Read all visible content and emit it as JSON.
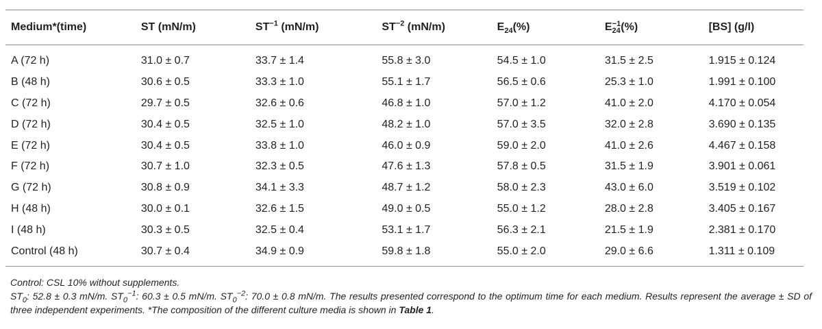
{
  "headers": [
    {
      "base": "Medium*(time)",
      "sup": "",
      "sub": "",
      "suffix": ""
    },
    {
      "base": "ST",
      "sup": "",
      "sub": "",
      "suffix": " (mN/m)"
    },
    {
      "base": "ST",
      "sup": "−1",
      "sub": "",
      "suffix": " (mN/m)"
    },
    {
      "base": "ST",
      "sup": "−2",
      "sub": "",
      "suffix": " (mN/m)"
    },
    {
      "base": "E",
      "sup": "",
      "sub": "24",
      "suffix": "(%)"
    },
    {
      "base": "E",
      "sup": "−1",
      "sub": "24",
      "suffix": "(%)"
    },
    {
      "base": "[BS]",
      "sup": "",
      "sub": "",
      "suffix": " (g/l)"
    }
  ],
  "rows": [
    [
      "A (72 h)",
      "31.0 ± 0.7",
      "33.7 ± 1.4",
      "55.8 ± 3.0",
      "54.5 ± 1.0",
      "31.5 ± 2.5",
      "1.915 ± 0.124"
    ],
    [
      "B (48 h)",
      "30.6 ± 0.5",
      "33.3 ± 1.0",
      "55.1 ± 1.7",
      "56.5 ± 0.6",
      "25.3 ± 1.0",
      "1.991 ± 0.100"
    ],
    [
      "C (72 h)",
      "29.7 ± 0.5",
      "32.6 ± 0.6",
      "46.8 ± 1.0",
      "57.0 ± 1.2",
      "41.0 ± 2.0",
      "4.170 ± 0.054"
    ],
    [
      "D (72 h)",
      "30.4 ± 0.5",
      "32.5 ± 1.0",
      "48.2 ± 1.0",
      "57.0 ± 3.5",
      "32.0 ± 2.8",
      "3.690 ± 0.135"
    ],
    [
      "E (72 h)",
      "30.4 ± 0.5",
      "33.8 ± 1.0",
      "46.0 ± 0.9",
      "59.0 ± 2.0",
      "41.0 ± 2.6",
      "4.467 ± 0.158"
    ],
    [
      "F (72 h)",
      "30.7 ± 1.0",
      "32.3 ± 0.5",
      "47.6 ± 1.3",
      "57.8 ± 0.5",
      "31.5 ± 1.9",
      "3.901 ± 0.061"
    ],
    [
      "G (72 h)",
      "30.8 ± 0.9",
      "34.1 ± 3.3",
      "48.7 ± 1.2",
      "58.0 ± 2.3",
      "43.0 ± 6.0",
      "3.519 ± 0.102"
    ],
    [
      "H (48 h)",
      "30.0 ± 0.1",
      "32.6 ± 1.5",
      "49.0 ± 0.5",
      "55.0 ± 1.2",
      "28.0 ± 2.8",
      "3.405 ± 0.167"
    ],
    [
      "I (48 h)",
      "30.3 ± 0.5",
      "32.5 ± 0.4",
      "53.1 ± 1.7",
      "56.3 ± 2.1",
      "21.5 ± 1.9",
      "2.381 ± 0.170"
    ],
    [
      "Control (48 h)",
      "30.7 ± 0.4",
      "34.9 ± 0.9",
      "59.8 ± 1.8",
      "55.0 ± 2.0",
      "29.0 ± 6.6",
      "1.311 ± 0.109"
    ]
  ],
  "footnotes": {
    "control": "Control: CSL 10% without supplements.",
    "st0_label": "ST",
    "st0_sub": "0",
    "st0_value": ": 52.8 ± 0.3 mN/m. ",
    "st0m1_label": "ST",
    "st0m1_sub": "0",
    "st0m1_sup": "−1",
    "st0m1_value": ": 60.3 ± 0.5 mN/m. ",
    "st0m2_label": "ST",
    "st0m2_sub": "0",
    "st0m2_sup": "−2",
    "st0m2_value": ": 70.0 ± 0.8 mN/m. ",
    "results_text": "The results presented correspond to the optimum time for each medium. Results represent the average ± SD of three independent experiments. *The composition of the different culture media is shown in ",
    "table_ref": "Table 1",
    "end": "."
  }
}
